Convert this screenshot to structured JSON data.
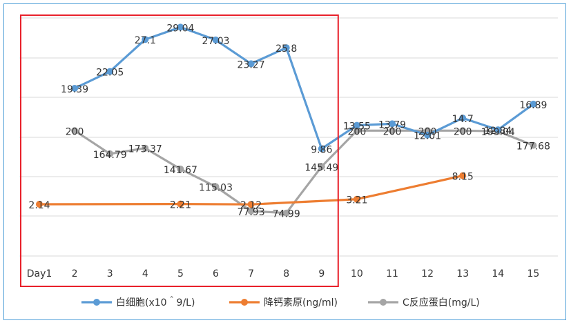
{
  "chart_data": {
    "type": "line",
    "title": "",
    "xlabel": "",
    "ylabel": "",
    "categories": [
      "Day1",
      "2",
      "3",
      "4",
      "5",
      "6",
      "7",
      "8",
      "9",
      "10",
      "11",
      "12",
      "13",
      "14",
      "15"
    ],
    "grid": true,
    "legend_position": "bottom",
    "series": [
      {
        "name": "白细胞(x10＾9/L)",
        "color": "#5b9bd5",
        "values": [
          null,
          19.39,
          22.05,
          27.1,
          29.04,
          27.03,
          23.27,
          25.8,
          9.86,
          13.55,
          13.79,
          12.01,
          14.7,
          12.84,
          16.89
        ],
        "labels": [
          "",
          "19.39",
          "22.05",
          "27.1",
          "29.04",
          "27.03",
          "23.27",
          "25.8",
          "9.86",
          "13.55",
          "13.79",
          "12.01",
          "14.7",
          "12.84",
          "16.89"
        ]
      },
      {
        "name": "降钙素原(ng/ml)",
        "color": "#ed7d31",
        "values": [
          2.14,
          null,
          null,
          null,
          2.21,
          null,
          2.12,
          null,
          null,
          3.21,
          null,
          null,
          8.15,
          null,
          null
        ],
        "labels": [
          "2.14",
          "",
          "",
          "",
          "2.21",
          "",
          "2.12",
          "",
          "",
          "3.21",
          "",
          "",
          "8.15",
          "",
          ""
        ]
      },
      {
        "name": "C反应蛋白(mg/L)",
        "color": "#a5a5a5",
        "values": [
          null,
          200,
          164.79,
          173.37,
          141.67,
          115.03,
          77.93,
          74.99,
          145.49,
          200,
          200,
          200,
          200,
          199.04,
          177.68
        ],
        "labels": [
          "",
          "200",
          "164.79",
          "173.37",
          "141.67",
          "115.03",
          "77.93",
          "74.99",
          "145.49",
          "200",
          "200",
          "200",
          "200",
          "199.04",
          "177.68"
        ]
      }
    ],
    "highlight_box": {
      "from_category": "Day1",
      "to_category": "9",
      "color": "#e8202a"
    }
  }
}
